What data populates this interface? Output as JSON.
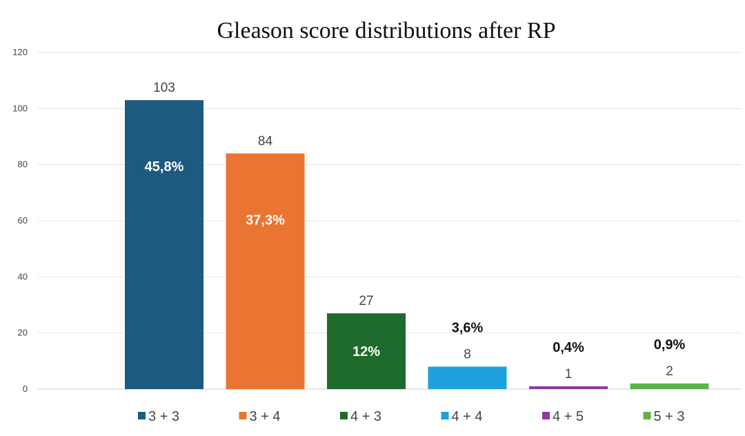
{
  "chart_data": {
    "type": "bar",
    "title": "Gleason score distributions after RP",
    "categories": [
      "3 + 3",
      "3 + 4",
      "4 + 3",
      "4 + 4",
      "4 + 5",
      "5 + 3"
    ],
    "values": [
      103,
      84,
      27,
      8,
      1,
      2
    ],
    "percent_labels": [
      "45,8%",
      "37,3%",
      "12%",
      "3,6%",
      "0,4%",
      "0,9%"
    ],
    "percent_label_position": [
      "inside",
      "inside",
      "inside",
      "above",
      "above",
      "above"
    ],
    "colors": [
      "#1d5a80",
      "#ea7431",
      "#1e6b2b",
      "#1ea1dc",
      "#8f3aa0",
      "#5cb34a"
    ],
    "ylim": [
      0,
      120
    ],
    "yticks": [
      0,
      20,
      40,
      60,
      80,
      100,
      120
    ],
    "grid": true,
    "legend_position": "bottom",
    "xlabel": "",
    "ylabel": ""
  }
}
